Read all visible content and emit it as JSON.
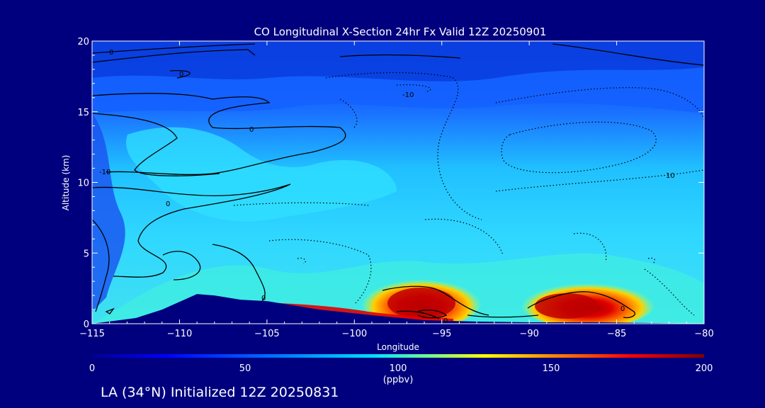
{
  "chart_data": {
    "type": "heatmap",
    "title": "CO Longitudinal X-Section 24hr  Fx Valid 12Z 20250901",
    "xlabel": "Longitude",
    "ylabel": "Altitude (km)",
    "xlim": [
      -115,
      -80
    ],
    "ylim": [
      0,
      20
    ],
    "x_ticks": [
      -115,
      -110,
      -105,
      -100,
      -95,
      -90,
      -85,
      -80
    ],
    "x_tick_labels": [
      "−115",
      "−110",
      "−105",
      "−100",
      "−95",
      "−90",
      "−85",
      "−80"
    ],
    "y_ticks": [
      0,
      5,
      10,
      15,
      20
    ],
    "y_tick_labels": [
      "0",
      "5",
      "10",
      "15",
      "20"
    ],
    "colorbar": {
      "range": [
        0,
        200
      ],
      "ticks": [
        0,
        50,
        100,
        150,
        200
      ],
      "tick_labels": [
        "0",
        "50",
        "100",
        "150",
        "200"
      ],
      "unit": "(ppbv)"
    },
    "contour_labels": [
      "0",
      "0",
      "0",
      "0",
      "0",
      "0",
      "0",
      "-10",
      "-10",
      "10"
    ],
    "terrain_profile": [
      {
        "lon": -115,
        "alt": 0.0
      },
      {
        "lon": -112.5,
        "alt": 0.4
      },
      {
        "lon": -111,
        "alt": 1.0
      },
      {
        "lon": -109,
        "alt": 2.1
      },
      {
        "lon": -108,
        "alt": 2.0
      },
      {
        "lon": -106.5,
        "alt": 1.7
      },
      {
        "lon": -105,
        "alt": 1.6
      },
      {
        "lon": -102,
        "alt": 1.0
      },
      {
        "lon": -99,
        "alt": 0.6
      },
      {
        "lon": -96,
        "alt": 0.25
      },
      {
        "lon": -93,
        "alt": 0.15
      },
      {
        "lon": -90,
        "alt": 0.1
      },
      {
        "lon": -86,
        "alt": 0.1
      },
      {
        "lon": -80,
        "alt": 0.0
      }
    ],
    "high_co_regions": [
      {
        "lon_center": -96,
        "alt_center": 1.3,
        "max_ppbv": 200
      },
      {
        "lon_center": -87,
        "alt_center": 1.2,
        "max_ppbv": 190
      }
    ]
  },
  "footer": {
    "text": "LA (34°N) Initialized 12Z 20250831"
  },
  "colors": {
    "background": "#00007f",
    "colormap": [
      "#00008f",
      "#0000ff",
      "#0080ff",
      "#00ffff",
      "#80ff80",
      "#ffff00",
      "#ff8000",
      "#ff0000",
      "#800000"
    ]
  }
}
